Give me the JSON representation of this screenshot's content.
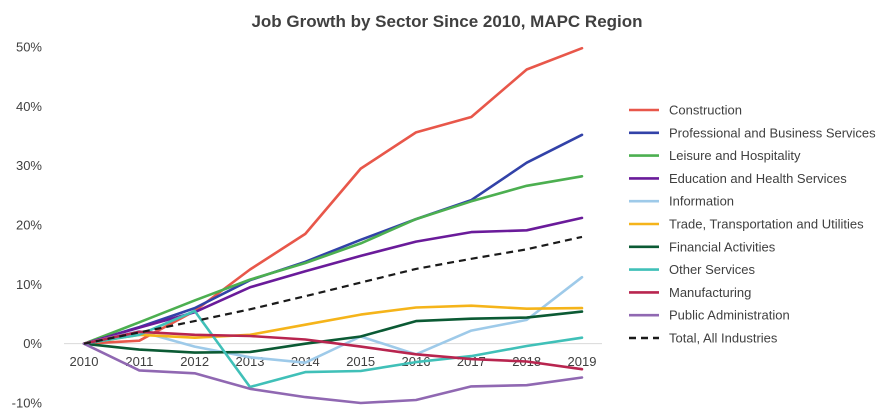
{
  "chart_data": {
    "type": "line",
    "title": "Job Growth by Sector Since 2010, MAPC Region",
    "xlabel": "",
    "ylabel": "",
    "x": [
      "2010",
      "2011",
      "2012",
      "2013",
      "2014",
      "2015",
      "2016",
      "2017",
      "2018",
      "2019"
    ],
    "ylim": [
      -10,
      50
    ],
    "yticks": [
      -10,
      0,
      10,
      20,
      30,
      40,
      50
    ],
    "ytick_labels": [
      "-10%",
      "0%",
      "10%",
      "20%",
      "30%",
      "40%",
      "50%"
    ],
    "grid": false,
    "legend_position": "right",
    "series": [
      {
        "name": "Construction",
        "color": "#e8574a",
        "dashed": false,
        "values": [
          0,
          0.5,
          5.5,
          12.5,
          18.5,
          29.5,
          35.6,
          38.2,
          46.2,
          49.8
        ]
      },
      {
        "name": "Professional and Business Services",
        "color": "#3242a8",
        "dashed": false,
        "values": [
          0,
          2.8,
          6.0,
          10.7,
          13.8,
          17.5,
          21.0,
          24.2,
          30.5,
          35.2
        ]
      },
      {
        "name": "Leisure and Hospitality",
        "color": "#4caf50",
        "dashed": false,
        "values": [
          0,
          3.6,
          7.3,
          10.8,
          13.6,
          16.9,
          21.0,
          24.0,
          26.6,
          28.2
        ]
      },
      {
        "name": "Education and Health Services",
        "color": "#6a1b9a",
        "dashed": false,
        "values": [
          0,
          2.7,
          5.3,
          9.5,
          12.2,
          14.8,
          17.2,
          18.8,
          19.1,
          21.2
        ]
      },
      {
        "name": "Information",
        "color": "#9ecae9",
        "dashed": false,
        "values": [
          0,
          2.1,
          -0.5,
          -2.3,
          -3.2,
          1.2,
          -1.8,
          2.2,
          4.0,
          11.2
        ]
      },
      {
        "name": "Trade, Transportation and Utilities",
        "color": "#f5b41a",
        "dashed": false,
        "values": [
          0,
          1.5,
          1.0,
          1.5,
          3.2,
          4.9,
          6.1,
          6.4,
          5.9,
          6.0
        ]
      },
      {
        "name": "Financial Activities",
        "color": "#0b5a34",
        "dashed": false,
        "values": [
          0,
          -1.0,
          -1.5,
          -1.4,
          0.0,
          1.2,
          3.8,
          4.2,
          4.4,
          5.4
        ]
      },
      {
        "name": "Other Services",
        "color": "#40c0b8",
        "dashed": false,
        "values": [
          0,
          1.5,
          5.5,
          -7.3,
          -4.8,
          -4.6,
          -3.1,
          -2.1,
          -0.4,
          1.0
        ]
      },
      {
        "name": "Manufacturing",
        "color": "#b8254f",
        "dashed": false,
        "values": [
          0,
          2.0,
          1.5,
          1.3,
          0.7,
          -0.5,
          -1.8,
          -2.6,
          -3.0,
          -4.3
        ]
      },
      {
        "name": "Public Administration",
        "color": "#9068b2",
        "dashed": false,
        "values": [
          0,
          -4.5,
          -5.0,
          -7.6,
          -9.0,
          -10.0,
          -9.5,
          -7.2,
          -7.0,
          -5.7
        ]
      },
      {
        "name": "Total, All Industries",
        "color": "#1a1a1a",
        "dashed": true,
        "values": [
          0,
          1.9,
          3.8,
          5.8,
          8.0,
          10.3,
          12.6,
          14.3,
          15.9,
          18.0
        ]
      }
    ]
  }
}
